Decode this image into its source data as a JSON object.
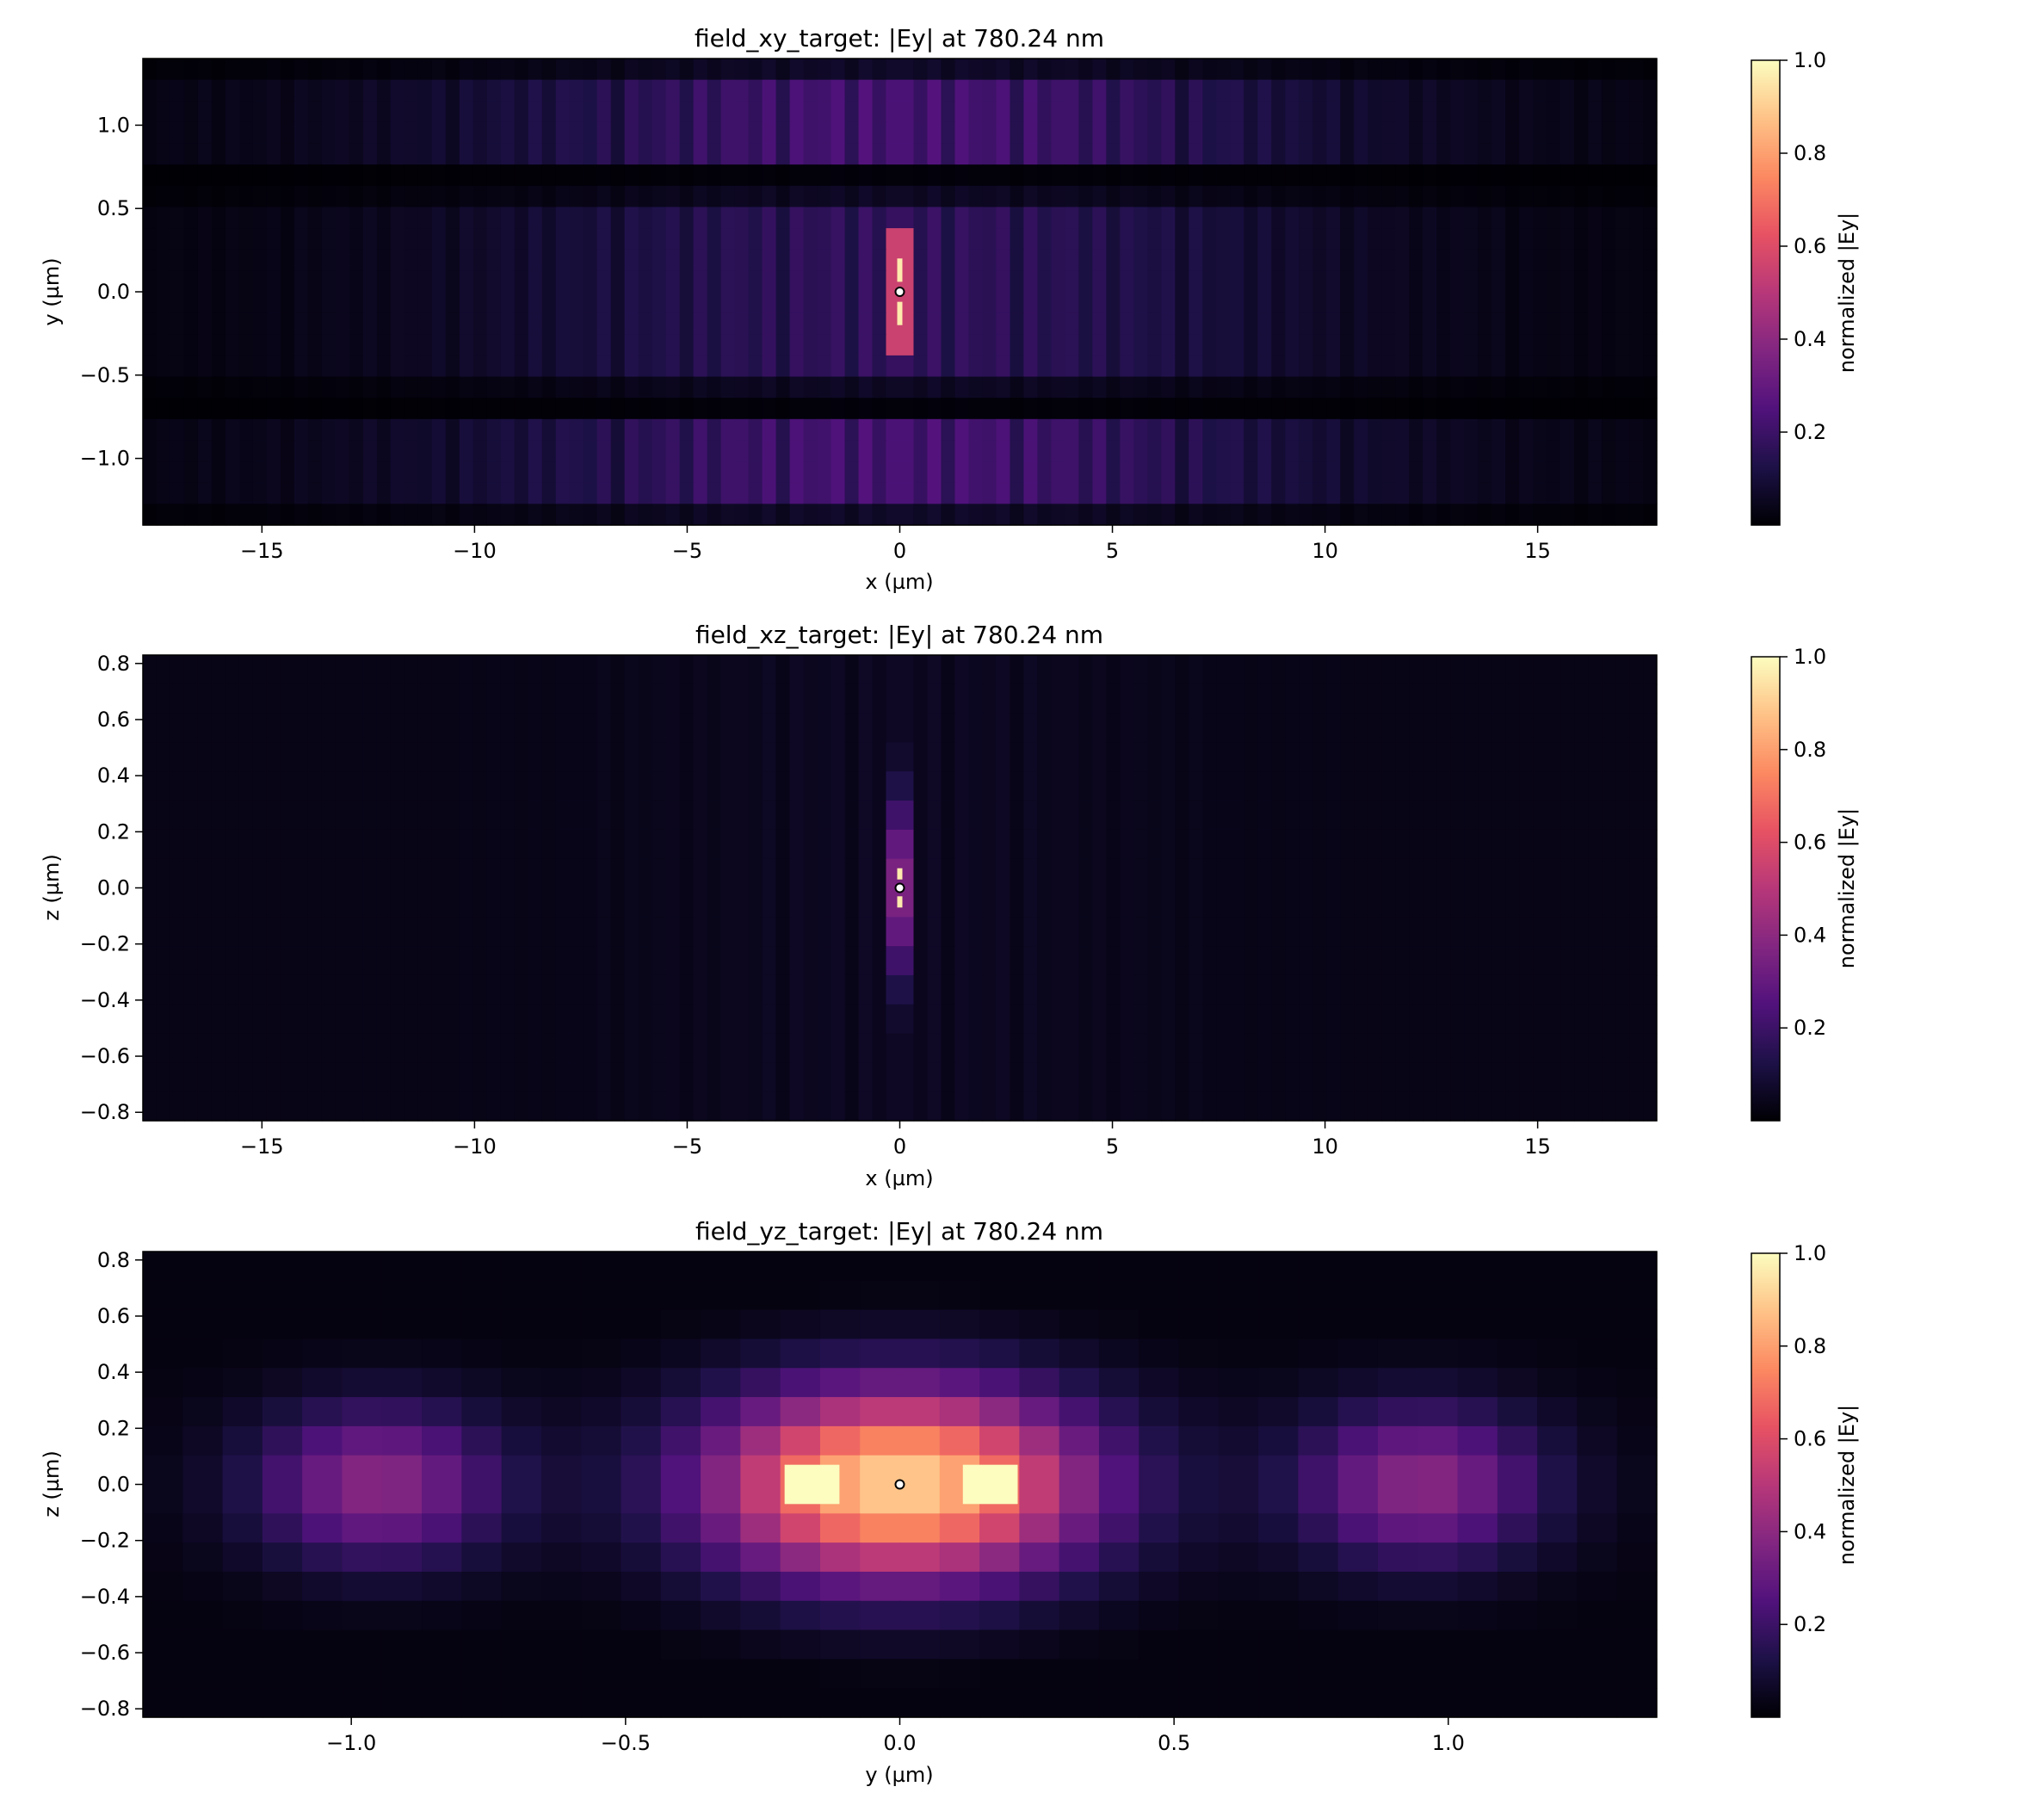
{
  "chart_data": [
    {
      "type": "heatmap",
      "title": "field_xy_target: |Ey| at 780.24 nm",
      "xlabel": "x (µm)",
      "ylabel": "y (µm)",
      "xlim": [
        -17.8,
        17.8
      ],
      "ylim": [
        -1.4,
        1.4
      ],
      "xticks": [
        {
          "value": -15,
          "label": "−15"
        },
        {
          "value": -10,
          "label": "−10"
        },
        {
          "value": -5,
          "label": "−5"
        },
        {
          "value": 0,
          "label": "0"
        },
        {
          "value": 5,
          "label": "5"
        },
        {
          "value": 10,
          "label": "10"
        },
        {
          "value": 15,
          "label": "15"
        }
      ],
      "yticks": [
        {
          "value": -1.0,
          "label": "−1.0"
        },
        {
          "value": -0.5,
          "label": "−0.5"
        },
        {
          "value": 0.0,
          "label": "0.0"
        },
        {
          "value": 0.5,
          "label": "0.5"
        },
        {
          "value": 1.0,
          "label": "1.0"
        }
      ],
      "colormap": "magma",
      "colorbar": {
        "label": "normalized |Ey|",
        "range": [
          0.0,
          1.0
        ],
        "ticks": [
          {
            "value": 0.2,
            "label": "0.2"
          },
          {
            "value": 0.4,
            "label": "0.4"
          },
          {
            "value": 0.6,
            "label": "0.6"
          },
          {
            "value": 0.8,
            "label": "0.8"
          },
          {
            "value": 1.0,
            "label": "1.0"
          }
        ]
      },
      "target_marker": {
        "x": 0.0,
        "y": 0.0
      },
      "field": {
        "pattern": "xy",
        "grid": [
          110,
          22
        ]
      },
      "grid": false
    },
    {
      "type": "heatmap",
      "title": "field_xz_target: |Ey| at 780.24 nm",
      "xlabel": "x (µm)",
      "ylabel": "z (µm)",
      "xlim": [
        -17.8,
        17.8
      ],
      "ylim": [
        -0.83,
        0.83
      ],
      "xticks": [
        {
          "value": -15,
          "label": "−15"
        },
        {
          "value": -10,
          "label": "−10"
        },
        {
          "value": -5,
          "label": "−5"
        },
        {
          "value": 0,
          "label": "0"
        },
        {
          "value": 5,
          "label": "5"
        },
        {
          "value": 10,
          "label": "10"
        },
        {
          "value": 15,
          "label": "15"
        }
      ],
      "yticks": [
        {
          "value": -0.8,
          "label": "−0.8"
        },
        {
          "value": -0.6,
          "label": "−0.6"
        },
        {
          "value": -0.4,
          "label": "−0.4"
        },
        {
          "value": -0.2,
          "label": "−0.2"
        },
        {
          "value": 0.0,
          "label": "0.0"
        },
        {
          "value": 0.2,
          "label": "0.2"
        },
        {
          "value": 0.4,
          "label": "0.4"
        },
        {
          "value": 0.6,
          "label": "0.6"
        },
        {
          "value": 0.8,
          "label": "0.8"
        }
      ],
      "colormap": "magma",
      "colorbar": {
        "label": "normalized |Ey|",
        "range": [
          0.0,
          1.0
        ],
        "ticks": [
          {
            "value": 0.2,
            "label": "0.2"
          },
          {
            "value": 0.4,
            "label": "0.4"
          },
          {
            "value": 0.6,
            "label": "0.6"
          },
          {
            "value": 0.8,
            "label": "0.8"
          },
          {
            "value": 1.0,
            "label": "1.0"
          }
        ]
      },
      "target_marker": {
        "x": 0.0,
        "y": 0.0
      },
      "field": {
        "pattern": "xz",
        "grid": [
          110,
          16
        ]
      },
      "grid": false
    },
    {
      "type": "heatmap",
      "title": "field_yz_target: |Ey| at 780.24 nm",
      "xlabel": "y (µm)",
      "ylabel": "z (µm)",
      "xlim": [
        -1.38,
        1.38
      ],
      "ylim": [
        -0.83,
        0.83
      ],
      "xticks": [
        {
          "value": -1.0,
          "label": "−1.0"
        },
        {
          "value": -0.5,
          "label": "−0.5"
        },
        {
          "value": 0.0,
          "label": "0.0"
        },
        {
          "value": 0.5,
          "label": "0.5"
        },
        {
          "value": 1.0,
          "label": "1.0"
        }
      ],
      "yticks": [
        {
          "value": -0.8,
          "label": "−0.8"
        },
        {
          "value": -0.6,
          "label": "−0.6"
        },
        {
          "value": -0.4,
          "label": "−0.4"
        },
        {
          "value": -0.2,
          "label": "−0.2"
        },
        {
          "value": 0.0,
          "label": "0.0"
        },
        {
          "value": 0.2,
          "label": "0.2"
        },
        {
          "value": 0.4,
          "label": "0.4"
        },
        {
          "value": 0.6,
          "label": "0.6"
        },
        {
          "value": 0.8,
          "label": "0.8"
        }
      ],
      "colormap": "magma",
      "colorbar": {
        "label": "normalized |Ey|",
        "range": [
          0.0,
          1.0
        ],
        "ticks": [
          {
            "value": 0.2,
            "label": "0.2"
          },
          {
            "value": 0.4,
            "label": "0.4"
          },
          {
            "value": 0.6,
            "label": "0.6"
          },
          {
            "value": 0.8,
            "label": "0.8"
          },
          {
            "value": 1.0,
            "label": "1.0"
          }
        ]
      },
      "target_marker": {
        "x": 0.0,
        "y": 0.0
      },
      "field": {
        "pattern": "yz",
        "grid": [
          38,
          16
        ]
      },
      "grid": false
    }
  ]
}
